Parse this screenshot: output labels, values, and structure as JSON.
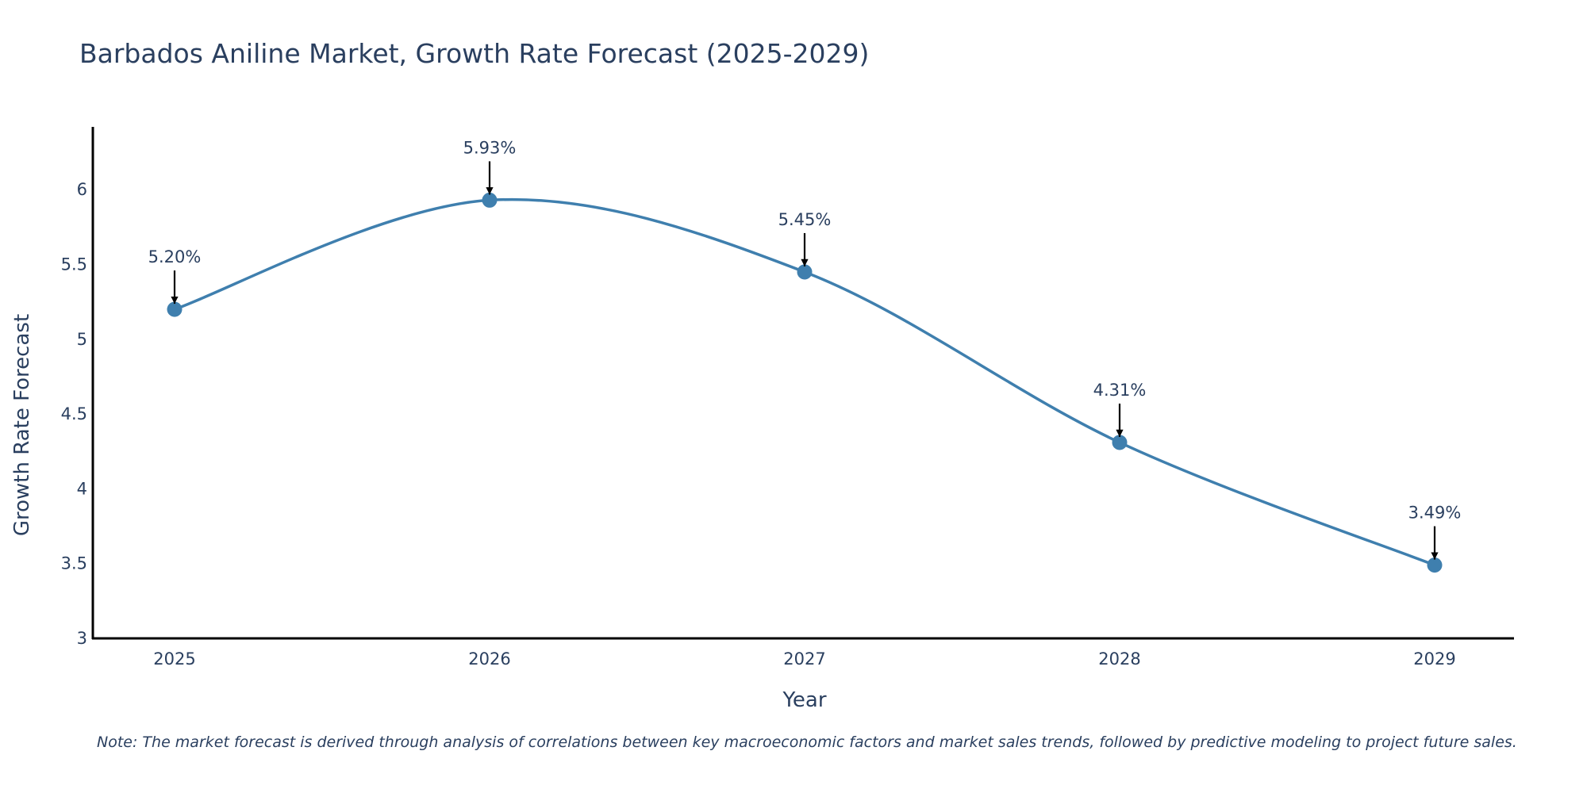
{
  "chart_data": {
    "type": "line",
    "title": "Barbados Aniline Market, Growth Rate Forecast (2025-2029)",
    "xlabel": "Year",
    "ylabel": "Growth Rate Forecast",
    "categories": [
      "2025",
      "2026",
      "2027",
      "2028",
      "2029"
    ],
    "series": [
      {
        "name": "Growth Rate Forecast",
        "values": [
          5.2,
          5.93,
          5.45,
          4.31,
          3.49
        ],
        "labels": [
          "5.20%",
          "5.93%",
          "5.45%",
          "4.31%",
          "3.49%"
        ],
        "color": "#3f7fae"
      }
    ],
    "ylim": [
      3,
      6.42
    ],
    "yticks": [
      3,
      3.5,
      4,
      4.5,
      5,
      5.5,
      6
    ],
    "ytick_labels": [
      "3",
      "3.5",
      "4",
      "4.5",
      "5",
      "5.5",
      "6"
    ],
    "grid": false,
    "legend": "none",
    "note": "Note: The market forecast is derived through analysis of correlations between key macroeconomic factors and market sales trends, followed by predictive modeling to project future sales."
  }
}
